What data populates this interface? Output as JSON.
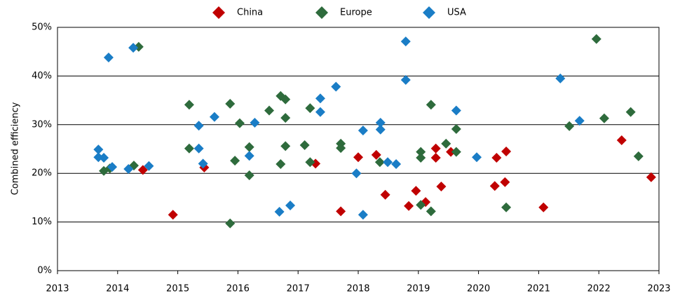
{
  "chart_data": {
    "type": "scatter",
    "ylabel": "Combined efficiency",
    "xlim": [
      2013,
      2023
    ],
    "xticks": [
      2013,
      2014,
      2015,
      2016,
      2017,
      2018,
      2019,
      2020,
      2021,
      2022,
      2023
    ],
    "ylim": [
      0,
      50
    ],
    "yticks": [
      {
        "value": 0,
        "label": "0%"
      },
      {
        "value": 10,
        "label": "10%"
      },
      {
        "value": 20,
        "label": "20%"
      },
      {
        "value": 30,
        "label": "30%"
      },
      {
        "value": 40,
        "label": "40%"
      },
      {
        "value": 50,
        "label": "50%"
      }
    ],
    "grid": true,
    "legend": "top",
    "series": [
      {
        "name": "China",
        "color": "#c00000",
        "x": [
          2014.42,
          2014.92,
          2015.44,
          2017.29,
          2017.71,
          2018.0,
          2018.3,
          2018.45,
          2018.84,
          2018.96,
          2019.12,
          2019.29,
          2019.29,
          2019.38,
          2019.54,
          2020.27,
          2020.3,
          2020.44,
          2020.46,
          2021.08,
          2022.38,
          2022.87
        ],
        "values": [
          20.7,
          11.5,
          21.2,
          22.0,
          12.2,
          23.3,
          23.8,
          15.6,
          13.3,
          16.4,
          14.1,
          25.1,
          23.2,
          17.3,
          24.4,
          17.4,
          23.2,
          18.2,
          24.5,
          13.0,
          26.8,
          19.2
        ]
      },
      {
        "name": "Europe",
        "color": "#2e6b3c",
        "x": [
          2013.77,
          2013.87,
          2014.27,
          2014.35,
          2015.19,
          2015.19,
          2015.87,
          2015.87,
          2015.95,
          2016.03,
          2016.19,
          2016.19,
          2016.52,
          2016.71,
          2016.79,
          2016.79,
          2016.79,
          2016.71,
          2017.11,
          2017.2,
          2017.2,
          2017.71,
          2017.71,
          2018.36,
          2019.04,
          2019.04,
          2019.04,
          2019.21,
          2019.21,
          2019.46,
          2019.63,
          2019.63,
          2020.46,
          2021.51,
          2021.96,
          2022.09,
          2022.53,
          2022.66
        ],
        "values": [
          20.5,
          21.0,
          21.6,
          46.0,
          34.1,
          25.1,
          34.3,
          9.7,
          22.6,
          30.3,
          25.4,
          19.6,
          32.9,
          35.9,
          35.2,
          31.4,
          25.6,
          21.9,
          25.8,
          33.4,
          22.3,
          26.1,
          25.2,
          22.3,
          24.4,
          23.2,
          13.5,
          34.1,
          12.2,
          26.1,
          29.1,
          24.4,
          13.0,
          29.7,
          47.6,
          31.3,
          32.6,
          23.5
        ]
      },
      {
        "name": "USA",
        "color": "#1a7dc6",
        "x": [
          2013.68,
          2013.68,
          2013.77,
          2013.85,
          2013.91,
          2014.18,
          2014.26,
          2014.52,
          2015.35,
          2015.35,
          2015.42,
          2015.61,
          2016.19,
          2016.28,
          2016.69,
          2016.87,
          2017.37,
          2017.37,
          2017.63,
          2017.97,
          2018.08,
          2018.08,
          2018.37,
          2018.37,
          2018.49,
          2018.63,
          2018.79,
          2018.79,
          2019.63,
          2019.97,
          2021.36,
          2021.68
        ],
        "values": [
          24.9,
          23.3,
          23.2,
          43.8,
          21.3,
          20.9,
          45.8,
          21.5,
          29.8,
          25.1,
          22.0,
          31.6,
          23.6,
          30.4,
          12.1,
          13.4,
          32.6,
          35.4,
          37.8,
          20.0,
          28.8,
          11.5,
          30.4,
          29.0,
          22.3,
          21.9,
          47.1,
          39.2,
          32.9,
          23.3,
          39.5,
          30.8
        ]
      }
    ]
  }
}
